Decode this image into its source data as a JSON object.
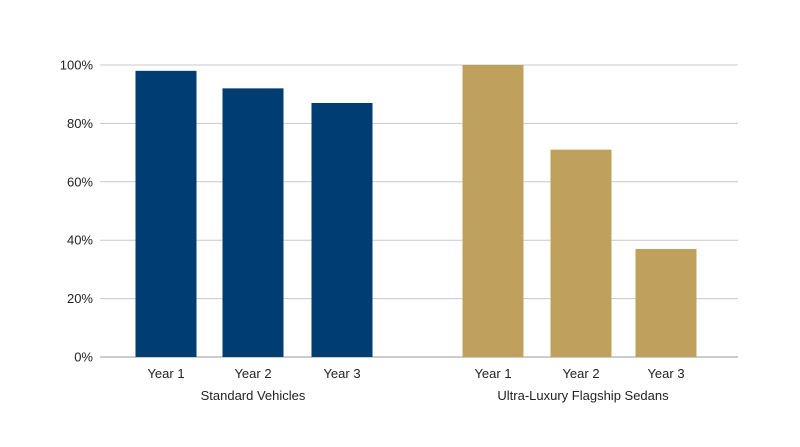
{
  "chart_data": {
    "type": "bar",
    "title": "",
    "xlabel": "",
    "ylabel": "",
    "ylim": [
      0,
      100
    ],
    "yticks": [
      "0%",
      "20%",
      "40%",
      "60%",
      "80%",
      "100%"
    ],
    "ytick_values": [
      0,
      20,
      40,
      60,
      80,
      100
    ],
    "grid": true,
    "legend": "none",
    "groups": [
      {
        "label": "Standard Vehicles",
        "color": "#003d73",
        "categories": [
          "Year 1",
          "Year 2",
          "Year 3"
        ],
        "values": [
          98,
          92,
          87
        ]
      },
      {
        "label": "Ultra-Luxury Flagship Sedans",
        "color": "#bfa05c",
        "categories": [
          "Year 1",
          "Year 2",
          "Year 3"
        ],
        "values": [
          100,
          71,
          37
        ]
      }
    ]
  }
}
